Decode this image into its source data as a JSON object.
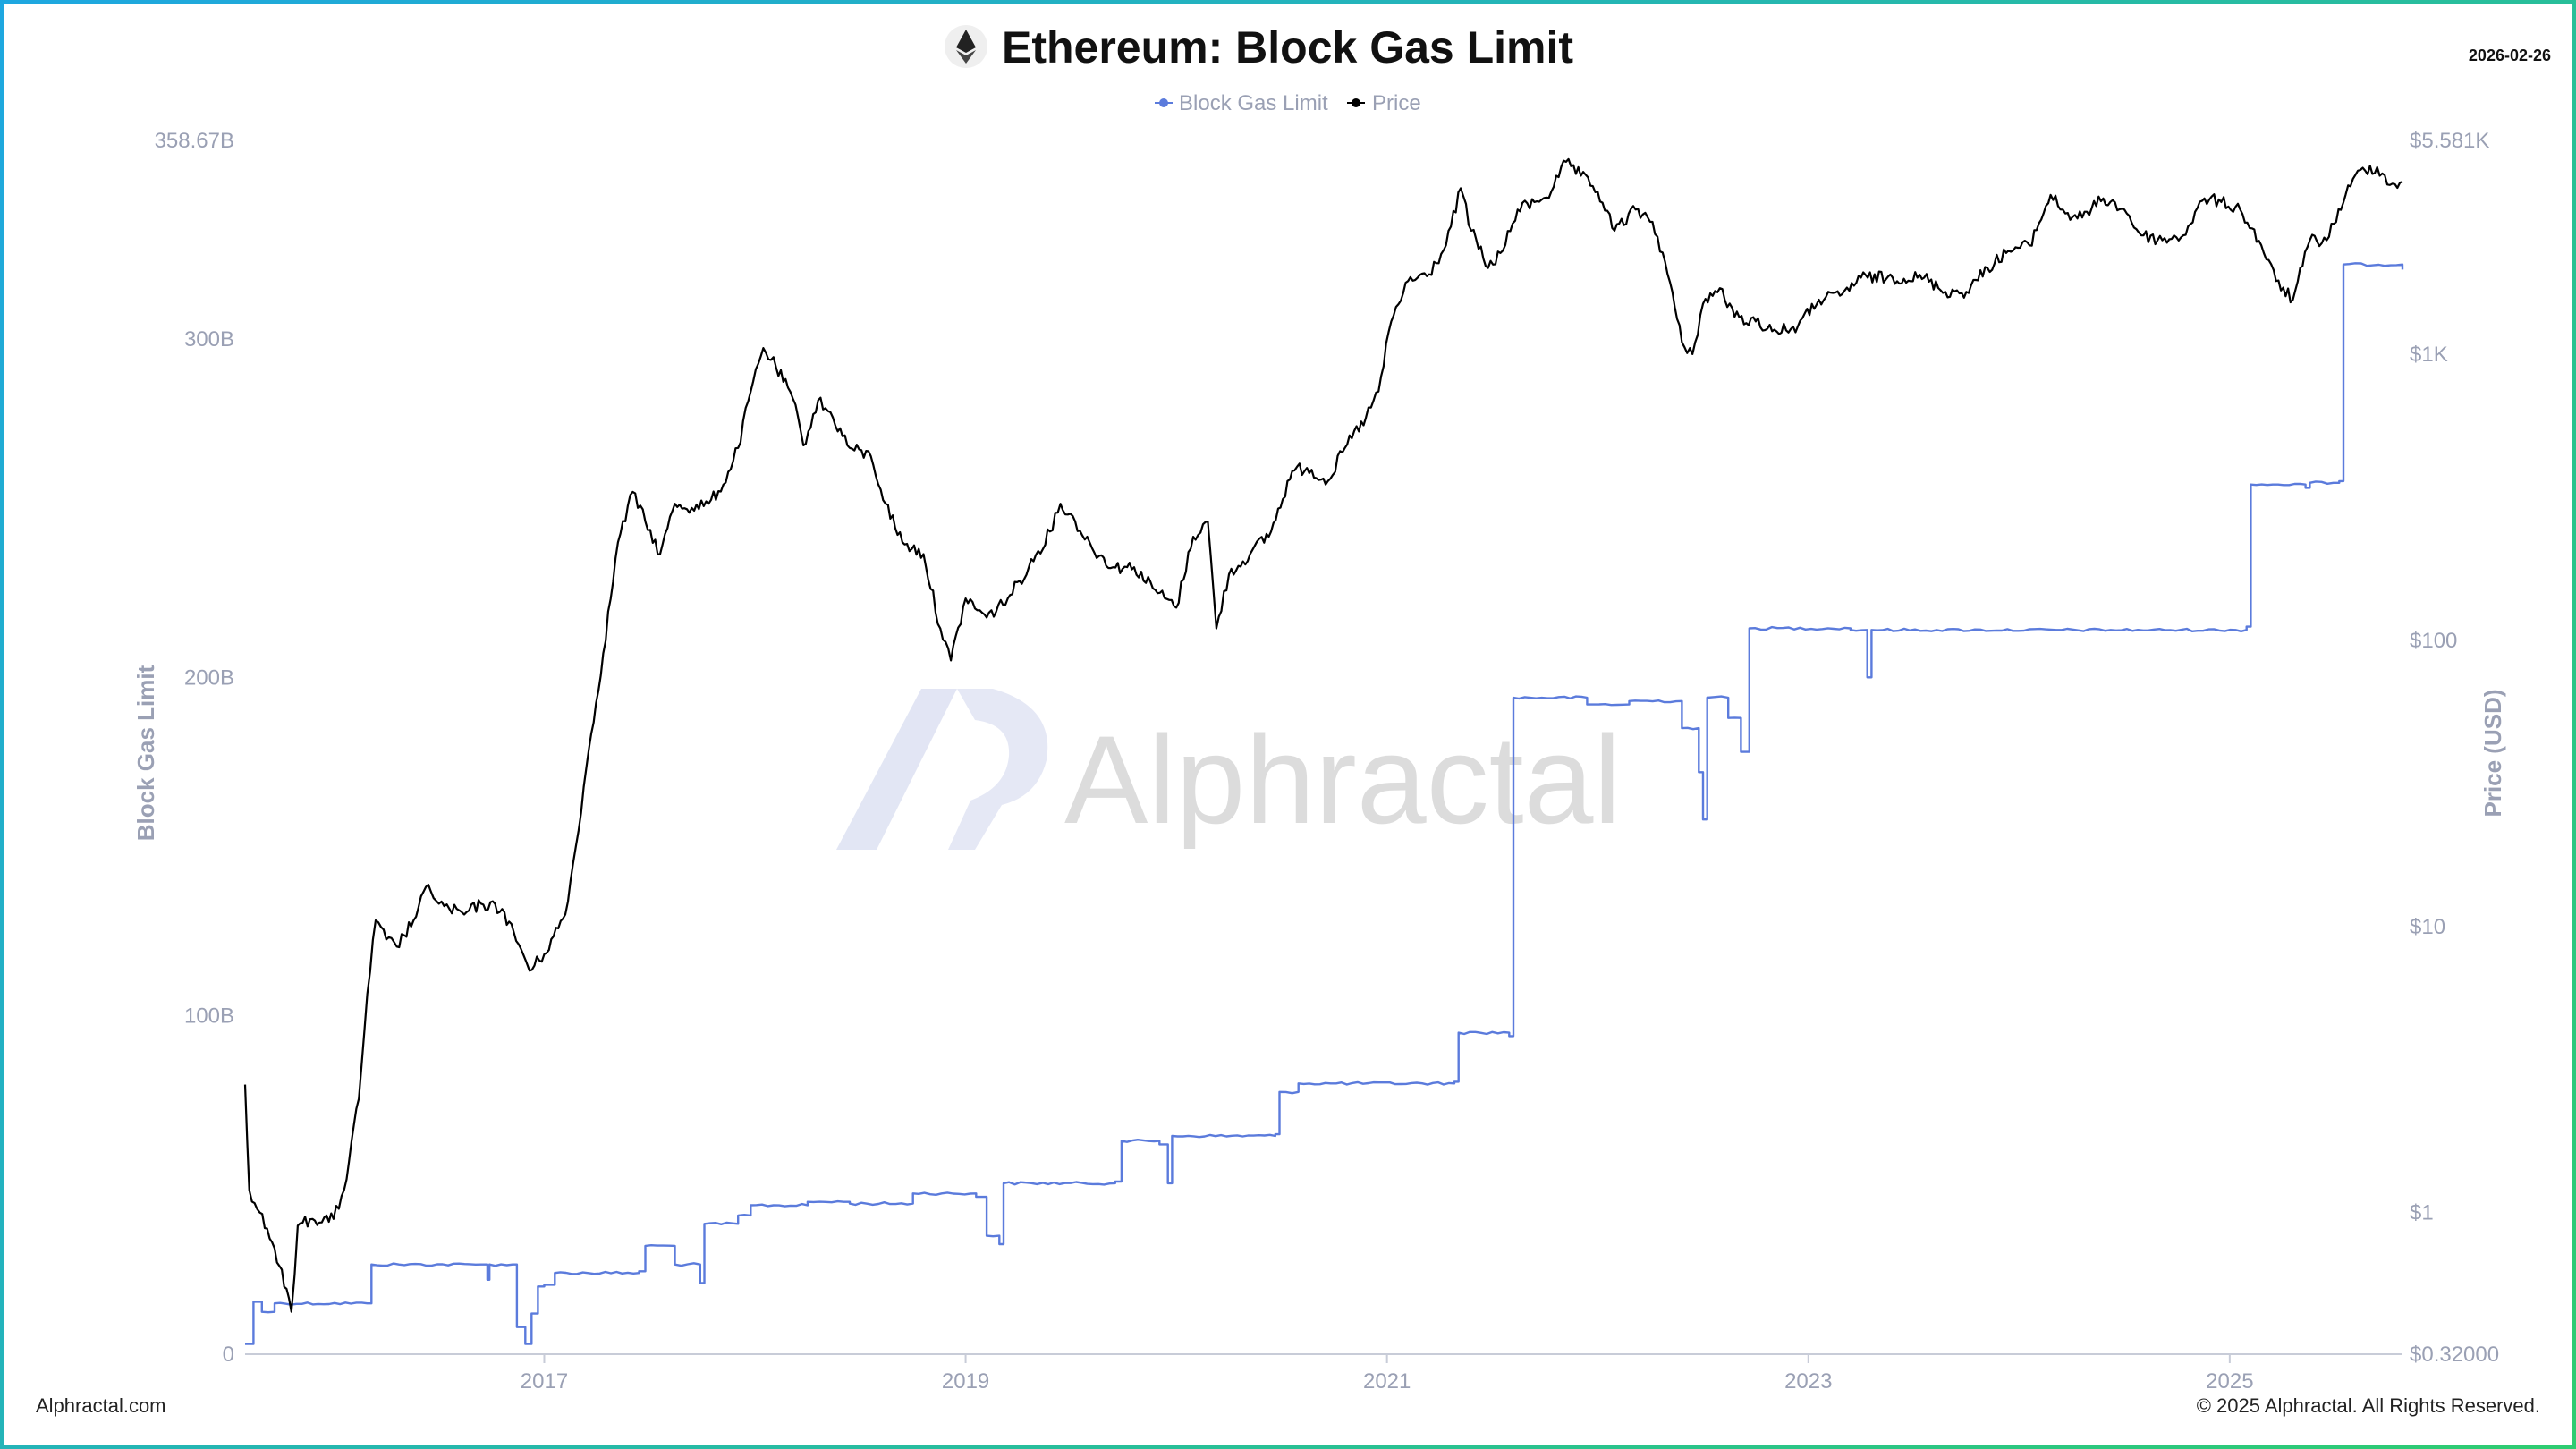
{
  "header": {
    "title": "Ethereum: Block Gas Limit",
    "date": "2026-02-26",
    "logo_icon": "ethereum-icon"
  },
  "watermark": {
    "text": "Alphractal"
  },
  "footer": {
    "left": "Alphractal.com",
    "right": "© 2025 Alphractal. All Rights Reserved."
  },
  "colors": {
    "gas": "#5b7bdc",
    "price": "#000000",
    "axis_text": "#9aa0b4",
    "frame_start": "#1ea7e0",
    "frame_end": "#2ecc71"
  },
  "chart_data": {
    "type": "line",
    "title": "Ethereum: Block Gas Limit",
    "legend": {
      "position": "top-center",
      "entries": [
        "Block Gas Limit",
        "Price"
      ]
    },
    "grid": false,
    "x_axis": {
      "range": [
        2015.58,
        2025.82
      ],
      "ticks": [
        {
          "v": 2017,
          "label": "2017"
        },
        {
          "v": 2019,
          "label": "2019"
        },
        {
          "v": 2021,
          "label": "2021"
        },
        {
          "v": 2023,
          "label": "2023"
        },
        {
          "v": 2025,
          "label": "2025"
        }
      ]
    },
    "y_left": {
      "label": "Block Gas Limit",
      "range": [
        0,
        358670000000
      ],
      "ticks": [
        {
          "v": 0,
          "label": "0"
        },
        {
          "v": 100000000000,
          "label": "100B"
        },
        {
          "v": 200000000000,
          "label": "200B"
        },
        {
          "v": 300000000000,
          "label": "300B"
        },
        {
          "v": 358670000000,
          "label": "358.67B"
        }
      ]
    },
    "y_right": {
      "label": "Price (USD)",
      "scale": "log",
      "range": [
        0.32,
        5581
      ],
      "ticks": [
        {
          "v": 0.32,
          "label": "$0.32000"
        },
        {
          "v": 1,
          "label": "$1"
        },
        {
          "v": 10,
          "label": "$10"
        },
        {
          "v": 100,
          "label": "$100"
        },
        {
          "v": 1000,
          "label": "$1K"
        },
        {
          "v": 5581,
          "label": "$5.581K"
        }
      ]
    },
    "series": [
      {
        "name": "Block Gas Limit",
        "axis": "left",
        "color": "#5b7bdc",
        "step": true,
        "points": [
          [
            2015.58,
            3000000000
          ],
          [
            2015.62,
            15500000000
          ],
          [
            2015.66,
            12500000000
          ],
          [
            2015.72,
            15000000000
          ],
          [
            2016.16,
            15000000000
          ],
          [
            2016.18,
            26500000000
          ],
          [
            2016.7,
            26500000000
          ],
          [
            2016.73,
            22000000000
          ],
          [
            2016.74,
            26500000000
          ],
          [
            2016.85,
            26500000000
          ],
          [
            2016.87,
            8000000000
          ],
          [
            2016.91,
            3000000000
          ],
          [
            2016.94,
            12000000000
          ],
          [
            2016.97,
            20000000000
          ],
          [
            2017.0,
            20500000000
          ],
          [
            2017.05,
            24000000000
          ],
          [
            2017.45,
            24500000000
          ],
          [
            2017.48,
            32000000000
          ],
          [
            2017.62,
            26500000000
          ],
          [
            2017.74,
            21000000000
          ],
          [
            2017.76,
            38500000000
          ],
          [
            2017.92,
            41000000000
          ],
          [
            2017.98,
            44000000000
          ],
          [
            2018.25,
            45000000000
          ],
          [
            2018.45,
            44500000000
          ],
          [
            2018.75,
            47500000000
          ],
          [
            2019.05,
            46500000000
          ],
          [
            2019.1,
            35000000000
          ],
          [
            2019.16,
            32500000000
          ],
          [
            2019.18,
            50500000000
          ],
          [
            2019.71,
            51000000000
          ],
          [
            2019.74,
            63000000000
          ],
          [
            2019.92,
            62000000000
          ],
          [
            2019.96,
            50500000000
          ],
          [
            2019.98,
            64500000000
          ],
          [
            2020.47,
            65000000000
          ],
          [
            2020.49,
            77500000000
          ],
          [
            2020.58,
            80000000000
          ],
          [
            2021.32,
            80500000000
          ],
          [
            2021.34,
            95000000000
          ],
          [
            2021.58,
            94000000000
          ],
          [
            2021.6,
            194000000000
          ],
          [
            2021.95,
            192000000000
          ],
          [
            2022.15,
            193000000000
          ],
          [
            2022.4,
            185000000000
          ],
          [
            2022.48,
            172000000000
          ],
          [
            2022.5,
            158000000000
          ],
          [
            2022.52,
            194000000000
          ],
          [
            2022.62,
            188000000000
          ],
          [
            2022.68,
            178000000000
          ],
          [
            2022.72,
            214500000000
          ],
          [
            2023.2,
            214000000000
          ],
          [
            2023.28,
            200000000000
          ],
          [
            2023.3,
            214000000000
          ],
          [
            2025.08,
            215000000000
          ],
          [
            2025.1,
            257000000000
          ],
          [
            2025.36,
            256000000000
          ],
          [
            2025.38,
            257500000000
          ],
          [
            2025.52,
            258000000000
          ],
          [
            2025.54,
            322000000000
          ],
          [
            2025.82,
            320500000000
          ]
        ]
      },
      {
        "name": "Price",
        "axis": "right",
        "color": "#000000",
        "points": [
          [
            2015.58,
            2.8
          ],
          [
            2015.6,
            1.2
          ],
          [
            2015.65,
            1.0
          ],
          [
            2015.72,
            0.75
          ],
          [
            2015.8,
            0.45
          ],
          [
            2015.83,
            0.9
          ],
          [
            2015.9,
            0.95
          ],
          [
            2016.0,
            0.95
          ],
          [
            2016.05,
            1.2
          ],
          [
            2016.12,
            2.5
          ],
          [
            2016.16,
            5.8
          ],
          [
            2016.2,
            10.5
          ],
          [
            2016.25,
            9.0
          ],
          [
            2016.3,
            8.5
          ],
          [
            2016.38,
            10.5
          ],
          [
            2016.45,
            14.0
          ],
          [
            2016.5,
            12.0
          ],
          [
            2016.55,
            11.5
          ],
          [
            2016.62,
            11.0
          ],
          [
            2016.7,
            12.0
          ],
          [
            2016.8,
            11.5
          ],
          [
            2016.9,
            8.0
          ],
          [
            2016.93,
            7.0
          ],
          [
            2017.0,
            8.0
          ],
          [
            2017.1,
            11.0
          ],
          [
            2017.15,
            19.0
          ],
          [
            2017.2,
            36.0
          ],
          [
            2017.28,
            90.0
          ],
          [
            2017.35,
            220.0
          ],
          [
            2017.42,
            330.0
          ],
          [
            2017.48,
            260.0
          ],
          [
            2017.55,
            200.0
          ],
          [
            2017.62,
            300.0
          ],
          [
            2017.7,
            290.0
          ],
          [
            2017.78,
            300.0
          ],
          [
            2017.85,
            350.0
          ],
          [
            2017.92,
            470.0
          ],
          [
            2017.98,
            740.0
          ],
          [
            2018.04,
            1050.0
          ],
          [
            2018.1,
            900.0
          ],
          [
            2018.18,
            700.0
          ],
          [
            2018.23,
            480.0
          ],
          [
            2018.3,
            690.0
          ],
          [
            2018.37,
            600.0
          ],
          [
            2018.45,
            470.0
          ],
          [
            2018.55,
            440.0
          ],
          [
            2018.62,
            300.0
          ],
          [
            2018.7,
            220.0
          ],
          [
            2018.8,
            200.0
          ],
          [
            2018.88,
            110.0
          ],
          [
            2018.93,
            85.0
          ],
          [
            2019.0,
            140.0
          ],
          [
            2019.1,
            120.0
          ],
          [
            2019.2,
            140.0
          ],
          [
            2019.3,
            180.0
          ],
          [
            2019.4,
            240.0
          ],
          [
            2019.45,
            300.0
          ],
          [
            2019.52,
            260.0
          ],
          [
            2019.6,
            210.0
          ],
          [
            2019.7,
            180.0
          ],
          [
            2019.8,
            180.0
          ],
          [
            2019.9,
            150.0
          ],
          [
            2020.0,
            130.0
          ],
          [
            2020.08,
            230.0
          ],
          [
            2020.15,
            260.0
          ],
          [
            2020.19,
            110.0
          ],
          [
            2020.25,
            170.0
          ],
          [
            2020.35,
            200.0
          ],
          [
            2020.45,
            240.0
          ],
          [
            2020.55,
            390.0
          ],
          [
            2020.62,
            400.0
          ],
          [
            2020.72,
            360.0
          ],
          [
            2020.8,
            470.0
          ],
          [
            2020.9,
            600.0
          ],
          [
            2020.96,
            740.0
          ],
          [
            2021.02,
            1300.0
          ],
          [
            2021.1,
            1800.0
          ],
          [
            2021.2,
            1900.0
          ],
          [
            2021.28,
            2400.0
          ],
          [
            2021.35,
            3800.0
          ],
          [
            2021.4,
            2700.0
          ],
          [
            2021.48,
            2000.0
          ],
          [
            2021.55,
            2300.0
          ],
          [
            2021.62,
            3200.0
          ],
          [
            2021.7,
            3400.0
          ],
          [
            2021.78,
            3700.0
          ],
          [
            2021.85,
            4700.0
          ],
          [
            2021.92,
            4200.0
          ],
          [
            2022.0,
            3700.0
          ],
          [
            2022.08,
            2700.0
          ],
          [
            2022.18,
            3200.0
          ],
          [
            2022.26,
            2900.0
          ],
          [
            2022.32,
            2100.0
          ],
          [
            2022.4,
            1100.0
          ],
          [
            2022.45,
            1000.0
          ],
          [
            2022.5,
            1500.0
          ],
          [
            2022.58,
            1700.0
          ],
          [
            2022.65,
            1350.0
          ],
          [
            2022.75,
            1300.0
          ],
          [
            2022.85,
            1200.0
          ],
          [
            2022.95,
            1250.0
          ],
          [
            2023.05,
            1550.0
          ],
          [
            2023.15,
            1600.0
          ],
          [
            2023.25,
            1850.0
          ],
          [
            2023.4,
            1850.0
          ],
          [
            2023.55,
            1850.0
          ],
          [
            2023.65,
            1650.0
          ],
          [
            2023.75,
            1650.0
          ],
          [
            2023.85,
            2000.0
          ],
          [
            2023.95,
            2300.0
          ],
          [
            2024.05,
            2400.0
          ],
          [
            2024.15,
            3600.0
          ],
          [
            2024.22,
            3100.0
          ],
          [
            2024.3,
            3000.0
          ],
          [
            2024.4,
            3500.0
          ],
          [
            2024.5,
            3200.0
          ],
          [
            2024.58,
            2600.0
          ],
          [
            2024.68,
            2500.0
          ],
          [
            2024.78,
            2600.0
          ],
          [
            2024.88,
            3500.0
          ],
          [
            2024.96,
            3400.0
          ],
          [
            2025.05,
            3200.0
          ],
          [
            2025.15,
            2400.0
          ],
          [
            2025.22,
            1800.0
          ],
          [
            2025.3,
            1550.0
          ],
          [
            2025.38,
            2500.0
          ],
          [
            2025.46,
            2500.0
          ],
          [
            2025.55,
            3600.0
          ],
          [
            2025.62,
            4400.0
          ],
          [
            2025.7,
            4500.0
          ],
          [
            2025.76,
            3900.0
          ],
          [
            2025.82,
            4000.0
          ]
        ]
      }
    ]
  }
}
